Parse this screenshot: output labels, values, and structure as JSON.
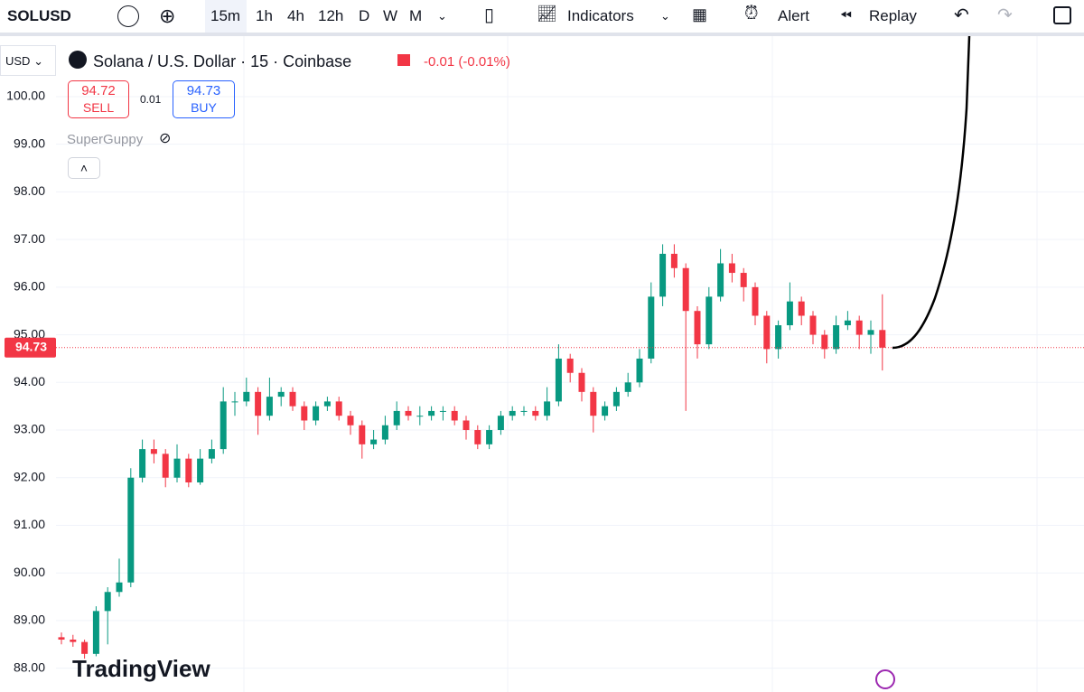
{
  "toolbar": {
    "symbol": "SOLUSD",
    "intervals": [
      "15m",
      "1h",
      "4h",
      "12h",
      "D",
      "W",
      "M"
    ],
    "indicators": "Indicators",
    "alert": "Alert",
    "replay": "Replay"
  },
  "legend": {
    "currency": "USD",
    "title": "Solana / U.S. Dollar · 15 · Coinbase",
    "change": "-0.01 (-0.01%)",
    "sell_price": "94.72",
    "sell": "SELL",
    "spread": "0.01",
    "buy_price": "94.73",
    "buy": "BUY",
    "indicator": "SuperGuppy"
  },
  "brand": "TradingView",
  "chart_data": {
    "type": "candlestick",
    "up_color": "#089981",
    "down_color": "#f23645",
    "last_price": 94.73,
    "grid": true,
    "ylim": [
      87.5,
      101.27
    ],
    "yticks": [
      {
        "value": 88,
        "label": "88.00"
      },
      {
        "value": 89,
        "label": "89.00"
      },
      {
        "value": 90,
        "label": "90.00"
      },
      {
        "value": 91,
        "label": "91.00"
      },
      {
        "value": 92,
        "label": "92.00"
      },
      {
        "value": 93,
        "label": "93.00"
      },
      {
        "value": 94,
        "label": "94.00"
      },
      {
        "value": 95,
        "label": "95.00"
      },
      {
        "value": 96,
        "label": "96.00"
      },
      {
        "value": 97,
        "label": "97.00"
      },
      {
        "value": 98,
        "label": "98.00"
      },
      {
        "value": 99,
        "label": "99.00"
      },
      {
        "value": 100,
        "label": "100.00"
      }
    ],
    "ohlc": [
      [
        88.65,
        88.75,
        88.5,
        88.6
      ],
      [
        88.6,
        88.7,
        88.45,
        88.55
      ],
      [
        88.55,
        88.6,
        88.2,
        88.3
      ],
      [
        88.3,
        89.3,
        88.25,
        89.2
      ],
      [
        89.2,
        89.7,
        88.5,
        89.6
      ],
      [
        89.6,
        90.3,
        89.5,
        89.8
      ],
      [
        89.8,
        92.2,
        89.7,
        92.0
      ],
      [
        92.0,
        92.8,
        91.9,
        92.6
      ],
      [
        92.6,
        92.8,
        92.3,
        92.5
      ],
      [
        92.5,
        92.6,
        91.8,
        92.0
      ],
      [
        92.0,
        92.7,
        91.9,
        92.4
      ],
      [
        92.4,
        92.5,
        91.8,
        91.9
      ],
      [
        91.9,
        92.6,
        91.85,
        92.4
      ],
      [
        92.4,
        92.8,
        92.3,
        92.6
      ],
      [
        92.6,
        93.9,
        92.5,
        93.6
      ],
      [
        93.6,
        93.8,
        93.3,
        93.6
      ],
      [
        93.6,
        94.1,
        93.5,
        93.8
      ],
      [
        93.8,
        93.9,
        92.9,
        93.3
      ],
      [
        93.3,
        94.1,
        93.2,
        93.7
      ],
      [
        93.7,
        93.9,
        93.5,
        93.8
      ],
      [
        93.8,
        93.9,
        93.4,
        93.5
      ],
      [
        93.5,
        93.6,
        93.0,
        93.2
      ],
      [
        93.2,
        93.6,
        93.1,
        93.5
      ],
      [
        93.5,
        93.7,
        93.4,
        93.6
      ],
      [
        93.6,
        93.7,
        93.2,
        93.3
      ],
      [
        93.3,
        93.4,
        92.9,
        93.1
      ],
      [
        93.1,
        93.2,
        92.4,
        92.7
      ],
      [
        92.7,
        93.0,
        92.6,
        92.8
      ],
      [
        92.8,
        93.3,
        92.7,
        93.1
      ],
      [
        93.1,
        93.6,
        93.0,
        93.4
      ],
      [
        93.4,
        93.5,
        93.2,
        93.3
      ],
      [
        93.3,
        93.5,
        93.1,
        93.3
      ],
      [
        93.3,
        93.5,
        93.2,
        93.4
      ],
      [
        93.4,
        93.5,
        93.2,
        93.4
      ],
      [
        93.4,
        93.5,
        93.1,
        93.2
      ],
      [
        93.2,
        93.3,
        92.8,
        93.0
      ],
      [
        93.0,
        93.1,
        92.6,
        92.7
      ],
      [
        92.7,
        93.1,
        92.6,
        93.0
      ],
      [
        93.0,
        93.4,
        92.9,
        93.3
      ],
      [
        93.3,
        93.5,
        93.2,
        93.4
      ],
      [
        93.4,
        93.5,
        93.3,
        93.4
      ],
      [
        93.4,
        93.5,
        93.2,
        93.3
      ],
      [
        93.3,
        93.9,
        93.2,
        93.6
      ],
      [
        93.6,
        94.8,
        93.5,
        94.5
      ],
      [
        94.5,
        94.6,
        94.0,
        94.2
      ],
      [
        94.2,
        94.3,
        93.6,
        93.8
      ],
      [
        93.8,
        93.9,
        92.95,
        93.3
      ],
      [
        93.3,
        93.6,
        93.2,
        93.5
      ],
      [
        93.5,
        93.9,
        93.4,
        93.8
      ],
      [
        93.8,
        94.2,
        93.7,
        94.0
      ],
      [
        94.0,
        94.7,
        93.9,
        94.5
      ],
      [
        94.5,
        96.1,
        94.4,
        95.8
      ],
      [
        95.8,
        96.9,
        95.6,
        96.7
      ],
      [
        96.7,
        96.9,
        96.2,
        96.4
      ],
      [
        96.4,
        96.5,
        93.4,
        95.5
      ],
      [
        95.5,
        95.6,
        94.5,
        94.8
      ],
      [
        94.8,
        96.0,
        94.7,
        95.8
      ],
      [
        95.8,
        96.8,
        95.7,
        96.5
      ],
      [
        96.5,
        96.7,
        96.1,
        96.3
      ],
      [
        96.3,
        96.4,
        95.7,
        96.0
      ],
      [
        96.0,
        96.1,
        95.2,
        95.4
      ],
      [
        95.4,
        95.5,
        94.4,
        94.7
      ],
      [
        94.7,
        95.3,
        94.5,
        95.2
      ],
      [
        95.2,
        96.1,
        95.1,
        95.7
      ],
      [
        95.7,
        95.8,
        95.2,
        95.4
      ],
      [
        95.4,
        95.5,
        94.8,
        95.0
      ],
      [
        95.0,
        95.1,
        94.5,
        94.7
      ],
      [
        94.7,
        95.4,
        94.6,
        95.2
      ],
      [
        95.2,
        95.5,
        95.1,
        95.3
      ],
      [
        95.3,
        95.4,
        94.7,
        95.0
      ],
      [
        95.0,
        95.3,
        94.6,
        95.1
      ],
      [
        95.1,
        95.85,
        94.25,
        94.73
      ]
    ]
  }
}
